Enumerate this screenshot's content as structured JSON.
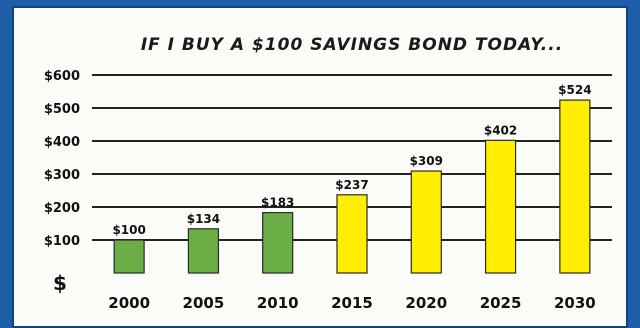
{
  "chart_data": {
    "type": "bar",
    "title": "IF I BUY A $100 SAVINGS BOND TODAY...",
    "ylabel": "$",
    "xlabel": "",
    "categories": [
      "2000",
      "2005",
      "2010",
      "2015",
      "2020",
      "2025",
      "2030"
    ],
    "values": [
      100,
      134,
      183,
      237,
      309,
      402,
      524
    ],
    "value_labels": [
      "$100",
      "$134",
      "$183",
      "$237",
      "$309",
      "$402",
      "$524"
    ],
    "bar_colors": [
      "#6cae46",
      "#6cae46",
      "#6cae46",
      "#ffee00",
      "#ffee00",
      "#ffee00",
      "#ffee00"
    ],
    "ylim": [
      0,
      600
    ],
    "yticks": [
      100,
      200,
      300,
      400,
      500,
      600
    ],
    "ytick_labels": [
      "$100",
      "$200",
      "$300",
      "$400",
      "$500",
      "$600"
    ],
    "grid": true
  },
  "colors": {
    "background": "#1f5ea8",
    "panel": "#fbfbf8",
    "green_bar": "#6cae46",
    "yellow_bar": "#ffee00"
  }
}
